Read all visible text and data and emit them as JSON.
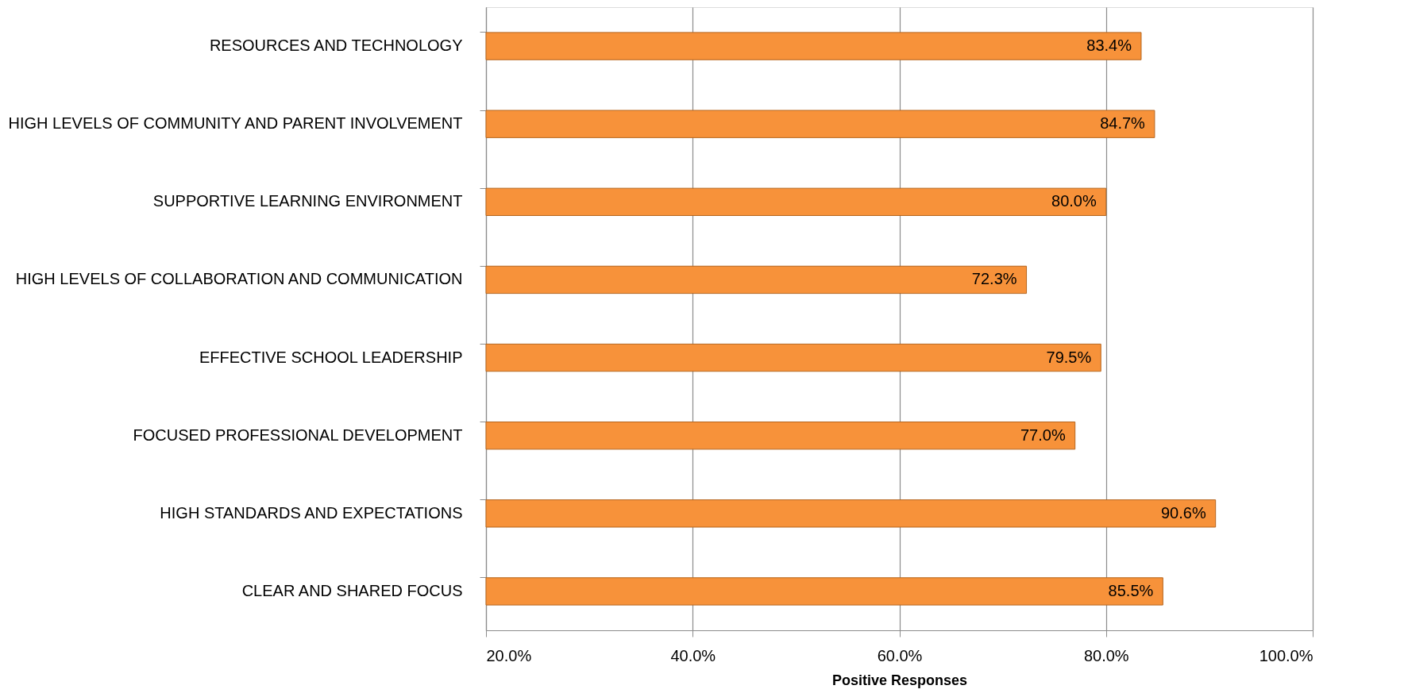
{
  "chart_data": {
    "type": "bar",
    "orientation": "horizontal",
    "categories": [
      "RESOURCES AND TECHNOLOGY",
      "HIGH LEVELS OF COMMUNITY AND PARENT INVOLVEMENT",
      "SUPPORTIVE LEARNING ENVIRONMENT",
      "HIGH LEVELS OF COLLABORATION AND COMMUNICATION",
      "EFFECTIVE SCHOOL LEADERSHIP",
      "FOCUSED PROFESSIONAL DEVELOPMENT",
      "HIGH STANDARDS AND EXPECTATIONS",
      "CLEAR AND SHARED FOCUS"
    ],
    "values": [
      83.4,
      84.7,
      80.0,
      72.3,
      79.5,
      77.0,
      90.6,
      85.5
    ],
    "value_labels": [
      "83.4%",
      "84.7%",
      "80.0%",
      "72.3%",
      "79.5%",
      "77.0%",
      "90.6%",
      "85.5%"
    ],
    "color": "#f7923a",
    "xlabel": "Positive Responses",
    "xlim": [
      20,
      100
    ],
    "xticks": [
      {
        "value": 20,
        "label": "20.0%"
      },
      {
        "value": 40,
        "label": "40.0%"
      },
      {
        "value": 60,
        "label": "60.0%"
      },
      {
        "value": 80,
        "label": "80.0%"
      },
      {
        "value": 100,
        "label": "100.0%"
      }
    ],
    "grid": "x"
  }
}
